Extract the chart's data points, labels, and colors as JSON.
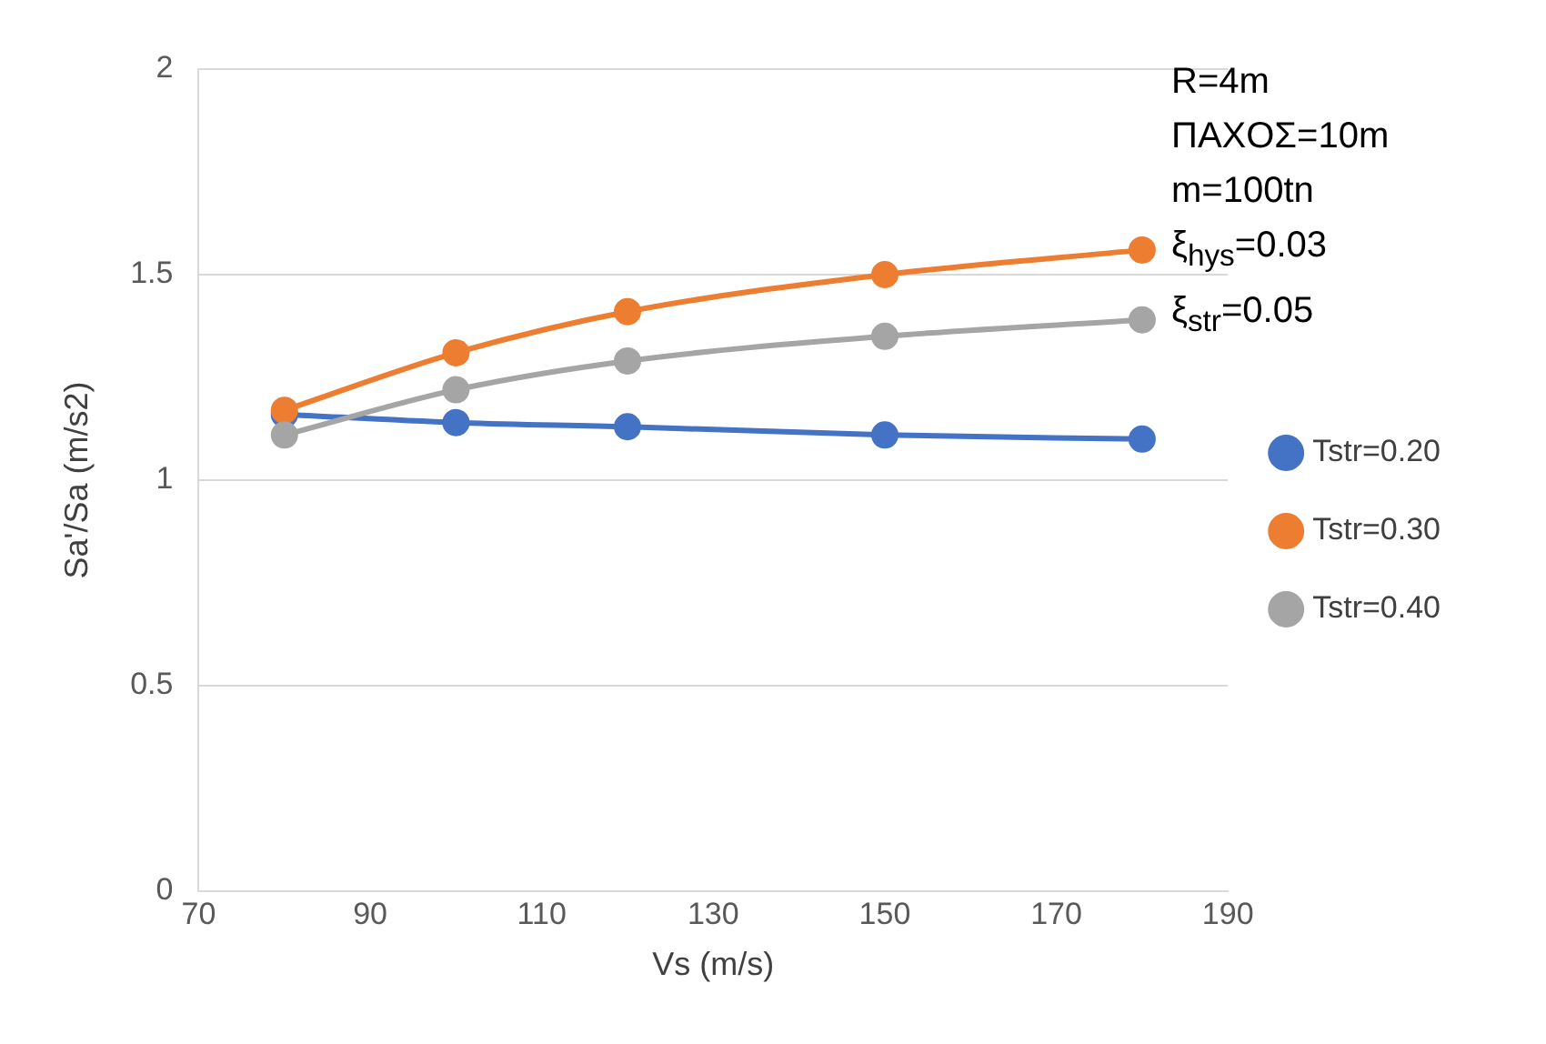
{
  "chart_data": {
    "type": "line",
    "xlabel": "Vs (m/s)",
    "ylabel": "Sa'/Sa (m/s2)",
    "x": [
      80,
      100,
      120,
      150,
      180
    ],
    "series": [
      {
        "name": "Tstr=0.20",
        "color": "#4472c4",
        "values": [
          1.16,
          1.14,
          1.13,
          1.11,
          1.1
        ]
      },
      {
        "name": "Tstr=0.30",
        "color": "#ed7d31",
        "values": [
          1.17,
          1.31,
          1.41,
          1.5,
          1.56
        ]
      },
      {
        "name": "Tstr=0.40",
        "color": "#a5a5a5",
        "values": [
          1.11,
          1.22,
          1.29,
          1.35,
          1.39
        ]
      }
    ],
    "xlim": [
      70,
      190
    ],
    "xticks": [
      70,
      90,
      110,
      130,
      150,
      170,
      190
    ],
    "ylim": [
      0,
      2
    ],
    "yticks": [
      0,
      0.5,
      1,
      1.5,
      2
    ],
    "grid": "y",
    "legend": "right",
    "marker": "circle",
    "line_style": "solid",
    "annotations": [
      "R=4m",
      "ΠΑΧΟΣ=10m",
      "m=100tn",
      "ξ$_{hys}$=0.03",
      "ξ$_{str}$=0.05"
    ]
  }
}
